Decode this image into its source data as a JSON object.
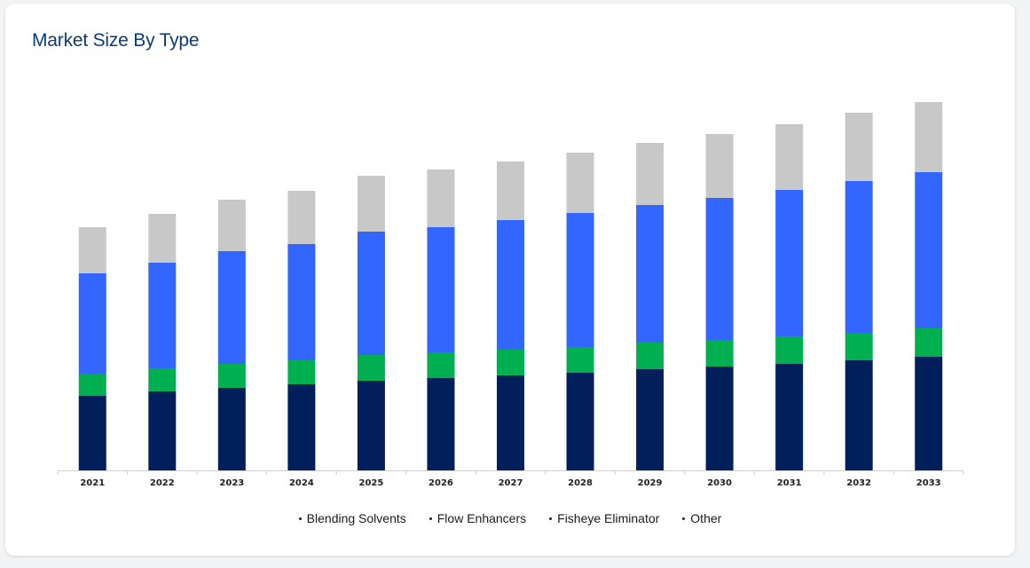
{
  "card": {
    "title": "Market Size By Type"
  },
  "chart_data": {
    "type": "bar",
    "stacked": true,
    "categories": [
      "2021",
      "2022",
      "2023",
      "2024",
      "2025",
      "2026",
      "2027",
      "2028",
      "2029",
      "2030",
      "2031",
      "2032",
      "2033"
    ],
    "series": [
      {
        "name": "Blending Solvents",
        "color": "#011f5b",
        "values": [
          84,
          89,
          93,
          97,
          101,
          104,
          107,
          110,
          114,
          117,
          120,
          124,
          128
        ]
      },
      {
        "name": "Flow Enhancers",
        "color": "#00b050",
        "values": [
          25,
          26,
          27,
          27,
          29,
          29,
          29,
          29,
          30,
          30,
          31,
          31,
          32
        ]
      },
      {
        "name": "Fisheye Eliminator",
        "color": "#3366ff",
        "values": [
          113,
          119,
          127,
          131,
          139,
          141,
          146,
          151,
          155,
          160,
          165,
          171,
          176
        ]
      },
      {
        "name": "Other",
        "color": "#c8c8c8",
        "values": [
          52,
          55,
          58,
          60,
          63,
          65,
          66,
          68,
          70,
          72,
          74,
          77,
          79
        ]
      }
    ],
    "grid": false,
    "legend_position": "bottom-center"
  }
}
